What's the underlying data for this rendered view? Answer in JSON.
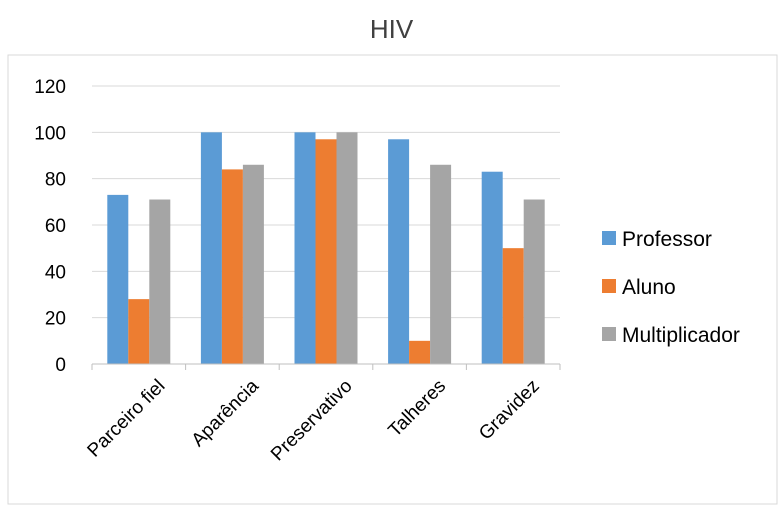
{
  "chart_data": {
    "type": "bar",
    "title": "HIV",
    "categories": [
      "Parceiro fiel",
      "Aparência",
      "Preservativo",
      "Talheres",
      "Gravidez"
    ],
    "series": [
      {
        "name": "Professor",
        "color": "#5B9BD5",
        "values": [
          73,
          100,
          100,
          97,
          83
        ]
      },
      {
        "name": "Aluno",
        "color": "#ED7D31",
        "values": [
          28,
          84,
          97,
          10,
          50
        ]
      },
      {
        "name": "Multiplicador",
        "color": "#A5A5A5",
        "values": [
          71,
          86,
          100,
          86,
          71
        ]
      }
    ],
    "ylim": [
      0,
      120
    ],
    "yticks": [
      0,
      20,
      40,
      60,
      80,
      100,
      120
    ],
    "grid": true,
    "legend_position": "right"
  }
}
